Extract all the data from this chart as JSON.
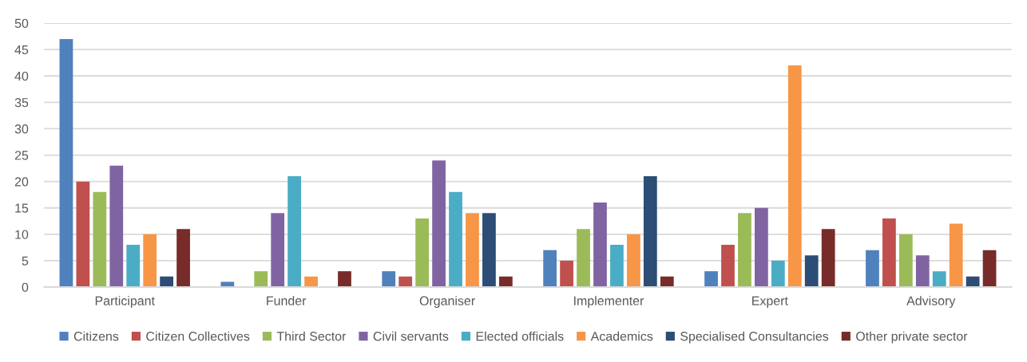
{
  "chart_data": {
    "type": "bar",
    "categories": [
      "Participant",
      "Funder",
      "Organiser",
      "Implementer",
      "Expert",
      "Advisory"
    ],
    "series": [
      {
        "name": "Citizens",
        "color": "#4f81bd",
        "values": [
          47,
          1,
          3,
          7,
          3,
          7
        ]
      },
      {
        "name": "Citizen Collectives",
        "color": "#c0504d",
        "values": [
          20,
          null,
          2,
          5,
          8,
          13
        ]
      },
      {
        "name": "Third Sector",
        "color": "#9bbb59",
        "values": [
          18,
          3,
          13,
          11,
          14,
          10
        ]
      },
      {
        "name": "Civil servants",
        "color": "#8064a2",
        "values": [
          23,
          14,
          24,
          16,
          15,
          6
        ]
      },
      {
        "name": "Elected officials",
        "color": "#4bacc6",
        "values": [
          8,
          21,
          18,
          8,
          5,
          3
        ]
      },
      {
        "name": "Academics",
        "color": "#f79646",
        "values": [
          10,
          2,
          14,
          10,
          42,
          12
        ]
      },
      {
        "name": "Specialised Consultancies",
        "color": "#2c4d75",
        "values": [
          2,
          null,
          14,
          21,
          6,
          2
        ]
      },
      {
        "name": "Other private sector",
        "color": "#772c2a",
        "values": [
          11,
          3,
          2,
          2,
          11,
          7
        ]
      }
    ],
    "ylim": [
      0,
      50
    ],
    "yticks": [
      0,
      5,
      10,
      15,
      20,
      25,
      30,
      35,
      40,
      45,
      50
    ],
    "grid": "y",
    "legend": "bottom"
  }
}
